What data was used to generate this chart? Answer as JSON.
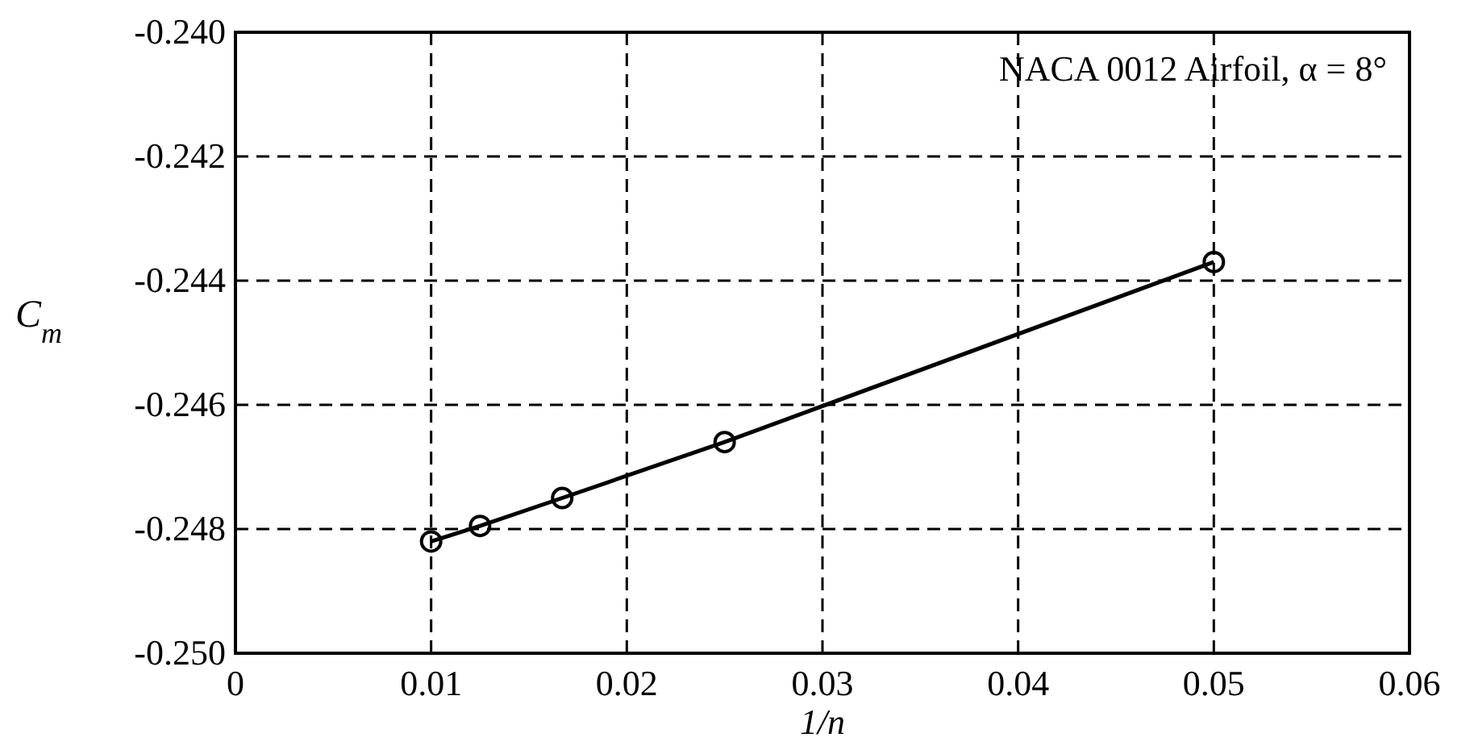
{
  "chart_data": {
    "type": "line",
    "xlabel": "1/n",
    "ylabel": "C$_{m}$",
    "annotations": [
      "NACA 0012 Airfoil, α = 8°"
    ],
    "x": [
      0.01,
      0.0125,
      0.0167,
      0.025,
      0.05
    ],
    "series": [
      {
        "color": "#000000",
        "values": [
          -0.2482,
          -0.24795,
          -0.2475,
          -0.2466,
          -0.2437
        ]
      }
    ],
    "xlim": [
      0,
      0.06
    ],
    "xticks": [
      0,
      0.01,
      0.02,
      0.03,
      0.04,
      0.05,
      0.06
    ],
    "ylim": [
      -0.25,
      -0.24
    ],
    "yticks": [
      {
        "value": -0.25,
        "label": "-0.250"
      },
      -0.248,
      -0.246,
      -0.244,
      -0.242,
      {
        "value": -0.24,
        "label": "-0.240"
      }
    ],
    "grid": true,
    "marker": "circle",
    "line_style": "solid"
  }
}
